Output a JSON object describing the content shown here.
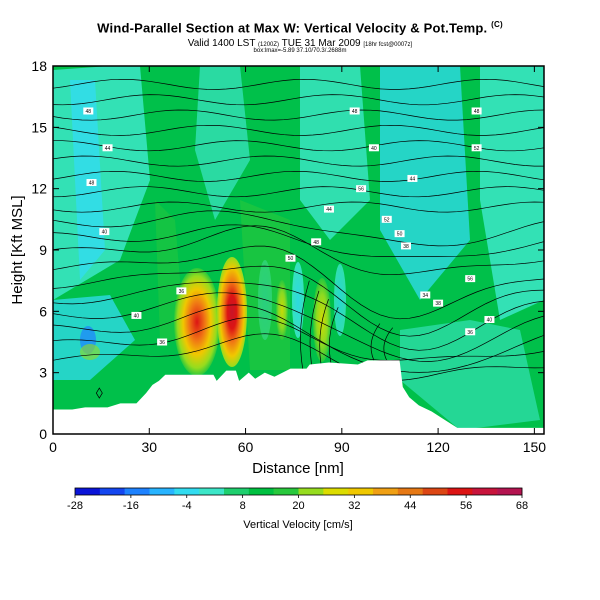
{
  "header": {
    "title": "Wind-Parallel Section at Max W: Vertical Velocity & Pot.Temp.",
    "title_mark": "(C)",
    "valid_main": "Valid 1400 LST",
    "valid_paren": "(1200Z)",
    "valid_date": "TUE 31 Mar 2009",
    "valid_tail": "[18hr fcst@0007z]",
    "sub_line": "box:lmax=-5.89 37.10/70.3/.2688m"
  },
  "chart_data": {
    "type": "heatmap",
    "xlabel": "Distance [nm]",
    "ylabel": "Height [Kft MSL]",
    "xlim": [
      0,
      153
    ],
    "ylim": [
      0,
      18
    ],
    "x_ticks": [
      "0",
      "30",
      "60",
      "90",
      "120",
      "150"
    ],
    "y_ticks": [
      "0",
      "3",
      "6",
      "9",
      "12",
      "15",
      "18"
    ],
    "colorbar_label": "Vertical Velocity [cm/s]",
    "colorbar_ticks": [
      "-28",
      "-16",
      "-4",
      "8",
      "20",
      "32",
      "44",
      "56",
      "68"
    ],
    "colorbar_colors": [
      "#0a14d8",
      "#1446f0",
      "#1e82ff",
      "#28b4ff",
      "#32dcf0",
      "#3ce6c8",
      "#1ecf6e",
      "#00c040",
      "#28c83c",
      "#96dc1e",
      "#dcdc00",
      "#f0c800",
      "#f0a014",
      "#e67814",
      "#dc4614",
      "#dc1414",
      "#c8143c",
      "#b41450"
    ],
    "terrain": [
      [
        0,
        1.2
      ],
      [
        6,
        1.2
      ],
      [
        10,
        1.3
      ],
      [
        17,
        1.3
      ],
      [
        21,
        1.5
      ],
      [
        26,
        1.5
      ],
      [
        29,
        2.0
      ],
      [
        31,
        2.4
      ],
      [
        33,
        2.6
      ],
      [
        35,
        2.9
      ],
      [
        50,
        2.9
      ],
      [
        51,
        2.6
      ],
      [
        54,
        3.1
      ],
      [
        57,
        3.1
      ],
      [
        58,
        2.6
      ],
      [
        61,
        3.0
      ],
      [
        63,
        2.7
      ],
      [
        66,
        3.0
      ],
      [
        69,
        2.8
      ],
      [
        74,
        3.2
      ],
      [
        79,
        3.2
      ],
      [
        80,
        3.4
      ],
      [
        86,
        3.5
      ],
      [
        95,
        3.4
      ],
      [
        98,
        3.6
      ],
      [
        108,
        3.6
      ],
      [
        109,
        2.3
      ],
      [
        111,
        1.8
      ],
      [
        114,
        1.4
      ],
      [
        118,
        1.1
      ],
      [
        122,
        0.7
      ],
      [
        126,
        0.3
      ],
      [
        153,
        0.3
      ]
    ],
    "contour_labels": [
      "48",
      "44",
      "48",
      "40",
      "48",
      "56",
      "44",
      "52",
      "44",
      "40",
      "50",
      "48",
      "52",
      "36",
      "38",
      "48",
      "56",
      "50",
      "38",
      "40",
      "36",
      "34",
      "40",
      "36"
    ]
  },
  "colors": {
    "background_field": "#00c04a",
    "contour": "#000000"
  }
}
